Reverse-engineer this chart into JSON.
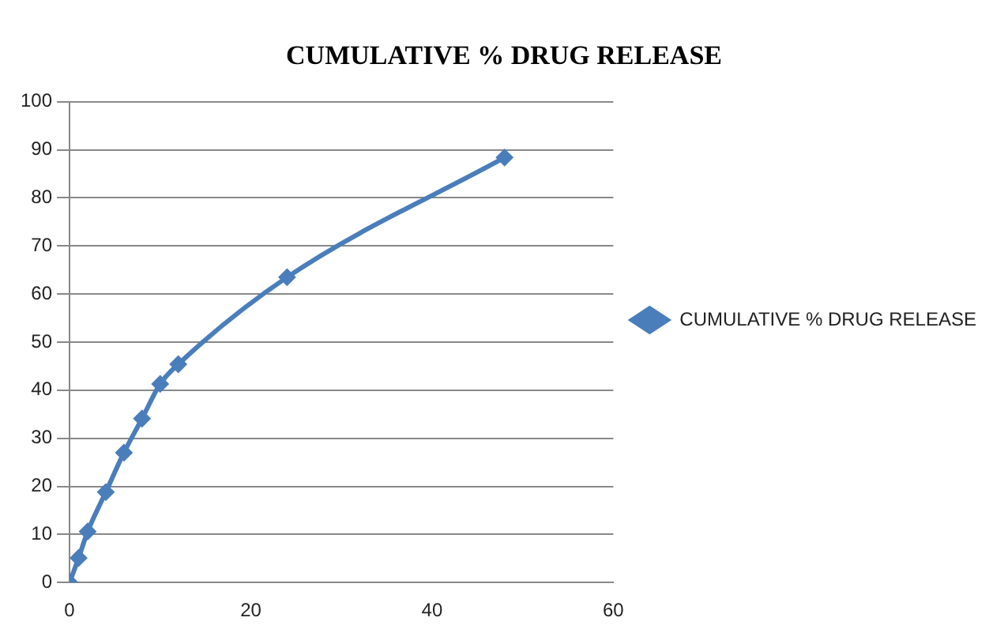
{
  "chart_data": {
    "type": "line",
    "title": "CUMULATIVE % DRUG RELEASE",
    "x": [
      0,
      1,
      2,
      4,
      6,
      8,
      10,
      12,
      24,
      48
    ],
    "series": [
      {
        "name": "CUMULATIVE % DRUG RELEASE",
        "color": "#4a7ebb",
        "values": [
          0,
          5.1,
          10.6,
          18.8,
          27,
          34.1,
          41.3,
          45.4,
          63.5,
          88.4
        ]
      }
    ],
    "xlim": [
      0,
      60
    ],
    "xticks": [
      0,
      20,
      40,
      60
    ],
    "ylim": [
      0,
      100
    ],
    "yticks": [
      0,
      10,
      20,
      30,
      40,
      50,
      60,
      70,
      80,
      90,
      100
    ],
    "grid": "y",
    "legend": "right",
    "marker": "diamond",
    "line_style": "solid"
  }
}
